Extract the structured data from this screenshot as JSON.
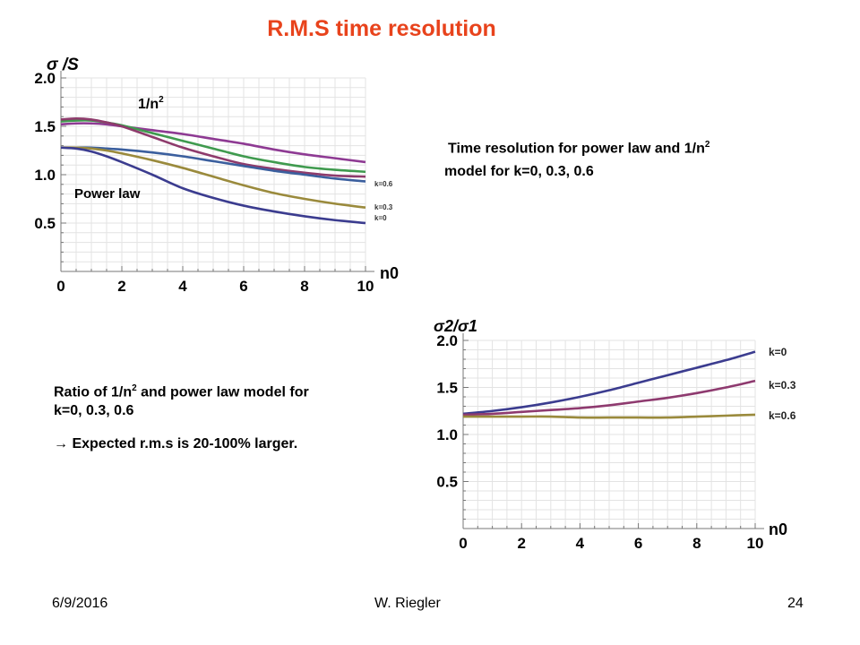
{
  "slide": {
    "title": "R.M.S time resolution",
    "footer_date": "6/9/2016",
    "footer_author": "W. Riegler",
    "footer_page": "24"
  },
  "text_blocks": {
    "top_right_line1": "Time resolution for power law and 1/n",
    "top_right_sup": "2",
    "top_right_line2": "model for  k=0, 0.3, 0.6",
    "ratio_line1_a": "Ratio of 1/n",
    "ratio_line1_sup": "2",
    "ratio_line1_b": " and power law model for",
    "ratio_line2": "k=0, 0.3, 0.6",
    "arrow_symbol": "→",
    "expected": " Expected r.m.s is 20-100% larger."
  },
  "chart_data": [
    {
      "type": "line",
      "ylabel": "σ /S",
      "xlabel": "n0",
      "xlim": [
        0,
        10
      ],
      "ylim": [
        0,
        2.0
      ],
      "xticks": [
        0,
        2,
        4,
        6,
        8,
        10
      ],
      "yticks": [
        0.5,
        1.0,
        1.5,
        2.0
      ],
      "ytick_labels": [
        "0.5",
        "1.0",
        "1.5",
        "2.0"
      ],
      "grid": true,
      "annotations": {
        "inv_n2_main": "1/n",
        "inv_n2_sup": "2",
        "power_law": "Power law",
        "k06": "k=0.6",
        "k03": "k=0.3",
        "k0": "k=0"
      },
      "x": [
        0,
        0.5,
        1,
        1.5,
        2,
        3,
        4,
        5,
        6,
        7,
        8,
        9,
        10
      ],
      "series": [
        {
          "color": "#8e3a93",
          "values": [
            1.52,
            1.53,
            1.53,
            1.52,
            1.5,
            1.46,
            1.42,
            1.37,
            1.32,
            1.26,
            1.21,
            1.17,
            1.13
          ]
        },
        {
          "color": "#3f9a4e",
          "values": [
            1.55,
            1.56,
            1.56,
            1.54,
            1.51,
            1.43,
            1.35,
            1.27,
            1.19,
            1.13,
            1.08,
            1.05,
            1.03
          ]
        },
        {
          "color": "#8e3b6c",
          "values": [
            1.57,
            1.58,
            1.57,
            1.54,
            1.5,
            1.39,
            1.28,
            1.19,
            1.11,
            1.06,
            1.02,
            0.99,
            0.98
          ]
        },
        {
          "color": "#3b5f9e",
          "values": [
            1.28,
            1.28,
            1.28,
            1.27,
            1.26,
            1.23,
            1.19,
            1.14,
            1.09,
            1.04,
            1.0,
            0.96,
            0.93
          ]
        },
        {
          "color": "#9a8a3c",
          "values": [
            1.28,
            1.28,
            1.27,
            1.25,
            1.22,
            1.15,
            1.07,
            0.98,
            0.89,
            0.81,
            0.75,
            0.7,
            0.66
          ]
        },
        {
          "color": "#3b3c8f",
          "values": [
            1.28,
            1.27,
            1.24,
            1.19,
            1.13,
            1.0,
            0.86,
            0.76,
            0.68,
            0.62,
            0.57,
            0.53,
            0.5
          ]
        }
      ]
    },
    {
      "type": "line",
      "ylabel": "σ2/σ1",
      "xlabel": "n0",
      "xlim": [
        0,
        10
      ],
      "ylim": [
        0,
        2.0
      ],
      "xticks": [
        0,
        2,
        4,
        6,
        8,
        10
      ],
      "yticks": [
        0.5,
        1.0,
        1.5,
        2.0
      ],
      "ytick_labels": [
        "0.5",
        "1.0",
        "1.5",
        "2.0"
      ],
      "grid": true,
      "x": [
        0,
        1,
        2,
        3,
        4,
        5,
        6,
        7,
        8,
        9,
        10
      ],
      "series": [
        {
          "name": "k=0",
          "color": "#3b3c8f",
          "values": [
            1.22,
            1.25,
            1.29,
            1.34,
            1.4,
            1.47,
            1.55,
            1.63,
            1.71,
            1.79,
            1.88
          ]
        },
        {
          "name": "k=0.3",
          "color": "#8e3a6f",
          "values": [
            1.21,
            1.22,
            1.24,
            1.26,
            1.28,
            1.31,
            1.35,
            1.39,
            1.44,
            1.5,
            1.57
          ]
        },
        {
          "name": "k=0.6",
          "color": "#9a8a3c",
          "values": [
            1.19,
            1.19,
            1.19,
            1.19,
            1.18,
            1.18,
            1.18,
            1.18,
            1.19,
            1.2,
            1.21
          ]
        }
      ]
    }
  ]
}
